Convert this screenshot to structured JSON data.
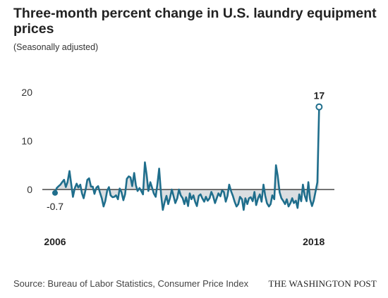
{
  "title": "Three-month percent change in U.S. laundry equipment prices",
  "subtitle": "(Seasonally adjusted)",
  "footer": {
    "source": "Source: Bureau of Labor Statistics, Consumer Price Index",
    "brand": "THE WASHINGTON POST"
  },
  "colors": {
    "line": "#1f6e8c",
    "fill": "#d3d8dc",
    "zero_line": "#222222",
    "text": "#222222"
  },
  "chart_data": {
    "type": "line",
    "title": "Three-month percent change in U.S. laundry equipment prices",
    "subtitle": "(Seasonally adjusted)",
    "xlabel": "",
    "ylabel": "",
    "ylim": [
      -6,
      21
    ],
    "yticks": [
      0,
      10,
      20
    ],
    "x_tick_labels": [
      "2006",
      "2018"
    ],
    "xlim": [
      2006,
      2018.5
    ],
    "grid": false,
    "annotations": [
      {
        "text": "-0.7",
        "x": 2006.0,
        "y": -0.7
      },
      {
        "text": "17",
        "x": 2018.25,
        "y": 17
      }
    ],
    "series": [
      {
        "x": [
          2006.0,
          2006.08,
          2006.17,
          2006.25,
          2006.33,
          2006.42,
          2006.5,
          2006.58,
          2006.67,
          2006.75,
          2006.83,
          2006.92,
          2007.0,
          2007.08,
          2007.17,
          2007.25,
          2007.33,
          2007.42,
          2007.5,
          2007.58,
          2007.67,
          2007.75,
          2007.83,
          2007.92,
          2008.0,
          2008.08,
          2008.17,
          2008.25,
          2008.33,
          2008.42,
          2008.5,
          2008.58,
          2008.67,
          2008.75,
          2008.83,
          2008.92,
          2009.0,
          2009.08,
          2009.17,
          2009.25,
          2009.33,
          2009.42,
          2009.5,
          2009.58,
          2009.67,
          2009.75,
          2009.83,
          2009.92,
          2010.0,
          2010.08,
          2010.17,
          2010.25,
          2010.33,
          2010.42,
          2010.5,
          2010.58,
          2010.67,
          2010.75,
          2010.83,
          2010.92,
          2011.0,
          2011.08,
          2011.17,
          2011.25,
          2011.33,
          2011.42,
          2011.5,
          2011.58,
          2011.67,
          2011.75,
          2011.83,
          2011.92,
          2012.0,
          2012.08,
          2012.17,
          2012.25,
          2012.33,
          2012.42,
          2012.5,
          2012.58,
          2012.67,
          2012.75,
          2012.83,
          2012.92,
          2013.0,
          2013.08,
          2013.17,
          2013.25,
          2013.33,
          2013.42,
          2013.5,
          2013.58,
          2013.67,
          2013.75,
          2013.83,
          2013.92,
          2014.0,
          2014.08,
          2014.17,
          2014.25,
          2014.33,
          2014.42,
          2014.5,
          2014.58,
          2014.67,
          2014.75,
          2014.83,
          2014.92,
          2015.0,
          2015.08,
          2015.17,
          2015.25,
          2015.33,
          2015.42,
          2015.5,
          2015.58,
          2015.67,
          2015.75,
          2015.83,
          2015.92,
          2016.0,
          2016.08,
          2016.17,
          2016.25,
          2016.33,
          2016.42,
          2016.5,
          2016.58,
          2016.67,
          2016.75,
          2016.83,
          2016.92,
          2017.0,
          2017.08,
          2017.17,
          2017.25,
          2017.33,
          2017.42,
          2017.5,
          2017.58,
          2017.67,
          2017.75,
          2017.83,
          2017.92,
          2018.0,
          2018.08,
          2018.17,
          2018.25
        ],
        "values": [
          -0.7,
          0.3,
          0.7,
          1.0,
          1.5,
          2.0,
          0.5,
          1.5,
          3.8,
          1.2,
          -1.5,
          0.3,
          1.2,
          0.4,
          1.0,
          -0.8,
          -1.8,
          0.0,
          2.0,
          2.3,
          0.6,
          0.6,
          -0.9,
          0.4,
          0.7,
          -0.6,
          -1.8,
          -3.5,
          -2.4,
          -0.2,
          0.5,
          -1.2,
          -1.6,
          -1.5,
          -1.2,
          -2.0,
          0.2,
          -0.5,
          -2.2,
          -1.0,
          2.2,
          2.7,
          2.5,
          0.7,
          3.4,
          0.9,
          -0.3,
          0.3,
          -0.3,
          -1.0,
          5.6,
          3.0,
          -0.3,
          1.5,
          0.4,
          -0.8,
          -1.5,
          1.2,
          4.3,
          -1.2,
          -4.2,
          -2.7,
          -1.3,
          -3.0,
          -1.8,
          0.0,
          -1.4,
          -2.8,
          -1.8,
          0.0,
          -1.2,
          -1.8,
          -3.0,
          -1.6,
          -3.4,
          -0.8,
          -2.0,
          -1.2,
          -2.5,
          -3.4,
          -1.3,
          -1.0,
          -1.8,
          -2.5,
          -1.5,
          -2.3,
          -1.8,
          -0.5,
          -1.3,
          -2.8,
          -1.8,
          -0.8,
          -1.4,
          -0.2,
          -0.5,
          -2.5,
          -1.3,
          1.0,
          -0.4,
          -1.3,
          -2.5,
          -3.5,
          -3.0,
          -1.5,
          -2.0,
          -4.2,
          -1.8,
          -3.0,
          -1.8,
          -1.6,
          -2.4,
          -0.5,
          -3.2,
          -1.8,
          -1.0,
          -2.5,
          1.0,
          -1.3,
          -2.8,
          -3.5,
          -3.0,
          -1.2,
          -2.0,
          5.0,
          2.8,
          -0.6,
          -1.8,
          -2.3,
          -3.0,
          -2.0,
          -3.5,
          -2.8,
          -1.8,
          -2.8,
          -2.3,
          -3.8,
          -1.0,
          -2.4,
          1.0,
          -1.2,
          -2.4,
          1.5,
          -2.0,
          -3.4,
          -2.3,
          -0.5,
          1.5,
          17.0
        ]
      }
    ]
  }
}
